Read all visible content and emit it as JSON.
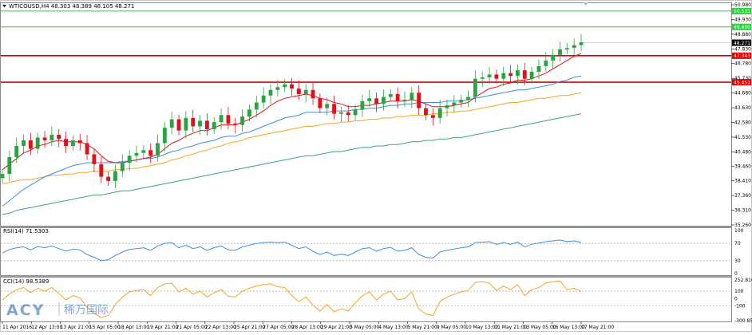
{
  "chart_header": {
    "title": "WTICOUSD,H4  48.303 48.389 48.105 48.271",
    "indicator_glyph": "dropdown-triangle-icon"
  },
  "price_axis": {
    "ticks": [
      "50.980",
      "49.930",
      "48.880",
      "47.830",
      "46.780",
      "45.730",
      "44.680",
      "43.630",
      "42.580",
      "41.530",
      "40.480",
      "39.460",
      "38.410",
      "37.360",
      "36.310",
      "35.260"
    ],
    "current_price": "48.271",
    "level_labels": [
      {
        "text": "50.531",
        "color": "#2ecc40",
        "kind": "green"
      },
      {
        "text": "49.400",
        "color": "#2ecc40",
        "kind": "green"
      },
      {
        "text": "47.343",
        "color": "#e00000",
        "kind": "red"
      },
      {
        "text": "45.451",
        "color": "#e00000",
        "kind": "red"
      }
    ]
  },
  "rsi": {
    "label": "RSI(14) 71.5303",
    "ticks": [
      "100",
      "70",
      "30",
      "0"
    ]
  },
  "cci": {
    "label": "CCI(14) 98.5389",
    "ticks": [
      "252.8162",
      "100",
      "0",
      "-100",
      "-300.859"
    ]
  },
  "time_axis": [
    "11 Apr 2016",
    "12 Apr 13:00",
    "13 Apr 21:00",
    "15 Apr 05:00",
    "18 Apr 13:00",
    "19 Apr 21:00",
    "21 Apr 05:00",
    "22 Apr 13:00",
    "25 Apr 21:00",
    "27 Apr 05:00",
    "28 Apr 13:00",
    "29 Apr 21:00",
    "3 May 05:00",
    "4 May 13:00",
    "5 May 21:00",
    "9 May 05:00",
    "10 May 13:00",
    "11 May 21:00",
    "13 May 05:00",
    "16 May 13:00",
    "17 May 21:00"
  ],
  "watermark": {
    "brand": "ACY",
    "cn": "稀万国际"
  },
  "colors": {
    "bull": "#26a541",
    "bear": "#e0111a",
    "ema_fast": "#e0111a",
    "ema_mid": "#3c8fdc",
    "ema_slow": "#f5a623",
    "ema_long": "#3aa86a",
    "rsi_line": "#3c8fdc",
    "cci_line": "#f5a623",
    "support": "#e00000",
    "resistance": "#2ecc40"
  },
  "chart_data": {
    "type": "candlestick",
    "symbol": "WTICOUSD",
    "timeframe": "H4",
    "ohlc_last": {
      "open": 48.303,
      "high": 48.389,
      "low": 48.105,
      "close": 48.271
    },
    "ylim": [
      35.26,
      50.98
    ],
    "horizontal_levels": [
      50.531,
      49.4,
      47.343,
      45.451
    ],
    "close_path": [
      38.9,
      40.1,
      40.9,
      41.3,
      40.7,
      41.5,
      41.3,
      41.7,
      41.4,
      40.9,
      41.3,
      41.1,
      40.3,
      39.6,
      38.7,
      38.4,
      39.1,
      39.7,
      40.2,
      40.4,
      40.6,
      40.2,
      41.1,
      42.2,
      42.8,
      42.0,
      42.9,
      42.3,
      42.7,
      42.1,
      42.6,
      43.1,
      42.5,
      42.4,
      43.0,
      43.5,
      44.0,
      44.5,
      44.9,
      45.1,
      45.3,
      45.0,
      44.6,
      44.9,
      44.3,
      43.6,
      43.9,
      43.2,
      43.3,
      43.1,
      43.5,
      44.1,
      44.3,
      43.9,
      44.4,
      44.6,
      44.1,
      44.2,
      44.7,
      43.6,
      43.1,
      42.9,
      43.6,
      43.8,
      44.0,
      44.2,
      44.4,
      45.7,
      45.8,
      46.0,
      45.7,
      46.1,
      45.9,
      46.3,
      45.7,
      46.2,
      46.6,
      47.0,
      47.4,
      47.8,
      47.9,
      48.1,
      48.3
    ],
    "ema_fast_path": [
      39.2,
      39.6,
      40.0,
      40.4,
      40.6,
      40.9,
      41.0,
      41.2,
      41.3,
      41.2,
      41.2,
      41.2,
      41.0,
      40.7,
      40.2,
      39.8,
      39.7,
      39.7,
      39.8,
      39.9,
      40.0,
      40.1,
      40.3,
      40.7,
      41.1,
      41.3,
      41.6,
      41.8,
      42.0,
      42.0,
      42.2,
      42.4,
      42.4,
      42.4,
      42.6,
      42.8,
      43.1,
      43.4,
      43.8,
      44.1,
      44.3,
      44.4,
      44.5,
      44.6,
      44.5,
      44.3,
      44.2,
      44.0,
      43.9,
      43.7,
      43.7,
      43.8,
      43.8,
      43.9,
      44.0,
      44.1,
      44.1,
      44.1,
      44.2,
      44.1,
      43.9,
      43.7,
      43.7,
      43.7,
      43.8,
      43.9,
      44.0,
      44.4,
      44.7,
      45.0,
      45.1,
      45.3,
      45.4,
      45.6,
      45.6,
      45.7,
      45.9,
      46.1,
      46.4,
      46.7,
      47.0,
      47.3,
      47.5
    ],
    "ema_mid_path": [
      36.6,
      37.0,
      37.4,
      37.8,
      38.1,
      38.4,
      38.7,
      38.9,
      39.1,
      39.3,
      39.5,
      39.6,
      39.7,
      39.7,
      39.7,
      39.7,
      39.7,
      39.8,
      39.8,
      39.9,
      40.0,
      40.0,
      40.1,
      40.3,
      40.5,
      40.6,
      40.8,
      40.9,
      41.1,
      41.2,
      41.3,
      41.5,
      41.6,
      41.6,
      41.8,
      41.9,
      42.1,
      42.3,
      42.5,
      42.7,
      42.9,
      43.0,
      43.1,
      43.3,
      43.3,
      43.3,
      43.3,
      43.4,
      43.4,
      43.4,
      43.5,
      43.5,
      43.6,
      43.6,
      43.7,
      43.8,
      43.8,
      43.9,
      43.9,
      44.0,
      44.0,
      44.0,
      44.0,
      44.1,
      44.1,
      44.1,
      44.2,
      44.3,
      44.4,
      44.5,
      44.6,
      44.7,
      44.8,
      44.9,
      44.9,
      45.0,
      45.1,
      45.2,
      45.3,
      45.5,
      45.6,
      45.8,
      45.9
    ],
    "ema_slow_path": [
      38.2,
      38.3,
      38.4,
      38.5,
      38.5,
      38.6,
      38.7,
      38.8,
      38.8,
      38.9,
      38.9,
      39.0,
      39.0,
      39.1,
      39.1,
      39.1,
      39.2,
      39.2,
      39.3,
      39.3,
      39.4,
      39.5,
      39.6,
      39.7,
      39.9,
      40.0,
      40.2,
      40.3,
      40.5,
      40.6,
      40.8,
      40.9,
      41.1,
      41.2,
      41.3,
      41.5,
      41.6,
      41.7,
      41.8,
      41.9,
      42.0,
      42.1,
      42.2,
      42.3,
      42.3,
      42.4,
      42.5,
      42.5,
      42.6,
      42.6,
      42.7,
      42.7,
      42.8,
      42.8,
      42.9,
      42.9,
      43.0,
      43.0,
      43.1,
      43.1,
      43.1,
      43.2,
      43.2,
      43.3,
      43.3,
      43.4,
      43.4,
      43.5,
      43.6,
      43.7,
      43.8,
      43.9,
      44.0,
      44.0,
      44.1,
      44.2,
      44.3,
      44.3,
      44.4,
      44.5,
      44.5,
      44.6,
      44.7
    ],
    "ema_long_path": [
      36.0,
      36.1,
      36.3,
      36.4,
      36.5,
      36.6,
      36.7,
      36.8,
      36.9,
      37.0,
      37.1,
      37.2,
      37.3,
      37.4,
      37.4,
      37.5,
      37.6,
      37.7,
      37.7,
      37.8,
      37.9,
      38.0,
      38.1,
      38.2,
      38.3,
      38.4,
      38.5,
      38.6,
      38.7,
      38.8,
      38.9,
      39.0,
      39.1,
      39.2,
      39.3,
      39.4,
      39.5,
      39.6,
      39.7,
      39.8,
      39.9,
      40.0,
      40.1,
      40.2,
      40.2,
      40.3,
      40.4,
      40.5,
      40.5,
      40.6,
      40.7,
      40.8,
      40.8,
      40.9,
      40.9,
      41.0,
      41.0,
      41.1,
      41.2,
      41.2,
      41.3,
      41.3,
      41.4,
      41.4,
      41.5,
      41.5,
      41.6,
      41.7,
      41.8,
      41.9,
      42.0,
      42.1,
      42.2,
      42.3,
      42.4,
      42.5,
      42.6,
      42.7,
      42.8,
      42.9,
      43.0,
      43.1,
      43.2
    ],
    "rsi_ylim": [
      0,
      100
    ],
    "rsi_path": [
      48,
      56,
      60,
      62,
      55,
      63,
      60,
      64,
      58,
      52,
      57,
      55,
      44,
      38,
      30,
      32,
      42,
      50,
      56,
      58,
      60,
      54,
      64,
      70,
      72,
      60,
      66,
      58,
      62,
      54,
      60,
      64,
      55,
      54,
      62,
      66,
      70,
      72,
      73,
      72,
      73,
      66,
      58,
      62,
      52,
      44,
      50,
      42,
      45,
      42,
      50,
      58,
      60,
      52,
      58,
      61,
      52,
      54,
      60,
      44,
      38,
      36,
      50,
      54,
      57,
      60,
      62,
      72,
      73,
      74,
      68,
      72,
      68,
      73,
      62,
      68,
      71,
      74,
      76,
      78,
      74,
      76,
      72
    ],
    "cci_ylim": [
      -300.859,
      252.8162
    ],
    "cci_path": [
      -20,
      60,
      120,
      150,
      80,
      140,
      100,
      150,
      70,
      -20,
      40,
      10,
      -120,
      -200,
      -260,
      -230,
      -80,
      20,
      90,
      110,
      120,
      40,
      150,
      200,
      210,
      90,
      140,
      60,
      100,
      20,
      80,
      120,
      30,
      20,
      100,
      140,
      170,
      190,
      200,
      160,
      150,
      40,
      -40,
      20,
      -90,
      -170,
      -80,
      -180,
      -140,
      -170,
      -60,
      40,
      90,
      -20,
      60,
      100,
      -20,
      0,
      90,
      -140,
      -210,
      -230,
      -40,
      20,
      60,
      90,
      110,
      220,
      230,
      210,
      110,
      170,
      120,
      190,
      40,
      120,
      150,
      210,
      230,
      240,
      120,
      140,
      98
    ]
  }
}
